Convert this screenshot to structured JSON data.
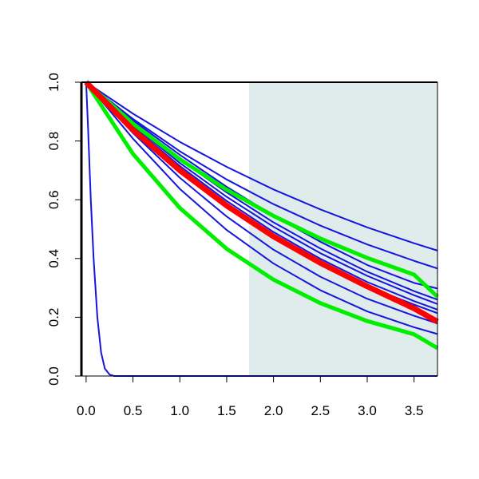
{
  "chart_data": {
    "type": "line",
    "title": "",
    "xlabel": "",
    "ylabel": "",
    "xlim": [
      -0.05,
      3.75
    ],
    "ylim": [
      0.0,
      1.0
    ],
    "x_ticks": [
      0.0,
      0.5,
      1.0,
      1.5,
      2.0,
      2.5,
      3.0,
      3.5
    ],
    "x_tick_labels": [
      "0.0",
      "0.5",
      "1.0",
      "1.5",
      "2.0",
      "2.5",
      "3.0",
      "3.5"
    ],
    "y_ticks": [
      0.0,
      0.2,
      0.4,
      0.6,
      0.8,
      1.0
    ],
    "y_tick_labels": [
      "0.0",
      "0.2",
      "0.4",
      "0.6",
      "0.8",
      "1.0"
    ],
    "grid": false,
    "legend": "none",
    "shaded_region": {
      "x_start": 1.74,
      "x_end": 3.75,
      "color": "#dfeceb"
    },
    "colors": {
      "blue": "#1515dd",
      "green": "#00ee00",
      "red": "#ff0000"
    },
    "series": [
      {
        "color": "blue",
        "width": 2,
        "x": [
          0.0,
          0.02,
          0.05,
          0.08,
          0.12,
          0.16,
          0.2,
          0.25,
          0.3,
          3.75
        ],
        "y": [
          1.0,
          0.85,
          0.6,
          0.4,
          0.2,
          0.08,
          0.025,
          0.005,
          0.0,
          0.0
        ]
      },
      {
        "color": "blue",
        "width": 2,
        "x": [
          0.0,
          0.5,
          1.0,
          1.5,
          2.0,
          2.5,
          3.0,
          3.5,
          3.75
        ],
        "y": [
          1.0,
          0.893,
          0.797,
          0.712,
          0.635,
          0.567,
          0.506,
          0.452,
          0.427
        ]
      },
      {
        "color": "blue",
        "width": 2,
        "x": [
          0.0,
          0.5,
          1.0,
          1.5,
          2.0,
          2.5,
          3.0,
          3.5,
          3.75
        ],
        "y": [
          1.0,
          0.875,
          0.765,
          0.669,
          0.585,
          0.512,
          0.448,
          0.392,
          0.366
        ]
      },
      {
        "color": "blue",
        "width": 2,
        "x": [
          0.0,
          0.5,
          1.0,
          1.5,
          2.0,
          2.5,
          3.0,
          3.5,
          3.75
        ],
        "y": [
          1.0,
          0.87,
          0.753,
          0.644,
          0.546,
          0.457,
          0.378,
          0.317,
          0.298
        ]
      },
      {
        "color": "blue",
        "width": 2,
        "x": [
          0.0,
          0.5,
          1.0,
          1.5,
          2.0,
          2.5,
          3.0,
          3.5,
          3.75
        ],
        "y": [
          1.0,
          0.862,
          0.737,
          0.625,
          0.523,
          0.434,
          0.355,
          0.289,
          0.26
        ]
      },
      {
        "color": "blue",
        "width": 2,
        "x": [
          0.0,
          0.5,
          1.0,
          1.5,
          2.0,
          2.5,
          3.0,
          3.5,
          3.75
        ],
        "y": [
          1.0,
          0.854,
          0.725,
          0.61,
          0.508,
          0.418,
          0.341,
          0.275,
          0.245
        ]
      },
      {
        "color": "blue",
        "width": 2,
        "x": [
          0.0,
          0.5,
          1.0,
          1.5,
          2.0,
          2.5,
          3.0,
          3.5,
          3.75
        ],
        "y": [
          1.0,
          0.848,
          0.715,
          0.596,
          0.49,
          0.399,
          0.32,
          0.255,
          0.226
        ]
      },
      {
        "color": "blue",
        "width": 2,
        "x": [
          0.0,
          0.5,
          1.0,
          1.5,
          2.0,
          2.5,
          3.0,
          3.5,
          3.75
        ],
        "y": [
          1.0,
          0.842,
          0.705,
          0.584,
          0.475,
          0.383,
          0.306,
          0.243,
          0.214
        ]
      },
      {
        "color": "blue",
        "width": 2,
        "x": [
          0.0,
          0.5,
          1.0,
          1.5,
          2.0,
          2.5,
          3.0,
          3.5,
          3.75
        ],
        "y": [
          1.0,
          0.827,
          0.675,
          0.543,
          0.43,
          0.338,
          0.263,
          0.205,
          0.179
        ]
      },
      {
        "color": "blue",
        "width": 2,
        "x": [
          0.0,
          0.5,
          1.0,
          1.5,
          2.0,
          2.5,
          3.0,
          3.5,
          3.75
        ],
        "y": [
          1.0,
          0.808,
          0.637,
          0.497,
          0.383,
          0.292,
          0.22,
          0.166,
          0.143
        ]
      },
      {
        "color": "green",
        "width": 5,
        "x": [
          0.0,
          0.5,
          1.0,
          1.5,
          2.0,
          2.5,
          3.0,
          3.5,
          3.75
        ],
        "y": [
          1.0,
          0.859,
          0.738,
          0.634,
          0.545,
          0.468,
          0.402,
          0.345,
          0.27
        ]
      },
      {
        "color": "green",
        "width": 5,
        "x": [
          0.0,
          0.5,
          1.0,
          1.5,
          2.0,
          2.5,
          3.0,
          3.5,
          3.75
        ],
        "y": [
          1.0,
          0.756,
          0.572,
          0.433,
          0.328,
          0.248,
          0.187,
          0.142,
          0.095
        ]
      },
      {
        "color": "red",
        "width": 7,
        "x": [
          0.0,
          0.5,
          1.0,
          1.5,
          2.0,
          2.5,
          3.0,
          3.5,
          3.75
        ],
        "y": [
          1.0,
          0.838,
          0.7,
          0.58,
          0.475,
          0.385,
          0.305,
          0.23,
          0.185
        ]
      }
    ]
  }
}
